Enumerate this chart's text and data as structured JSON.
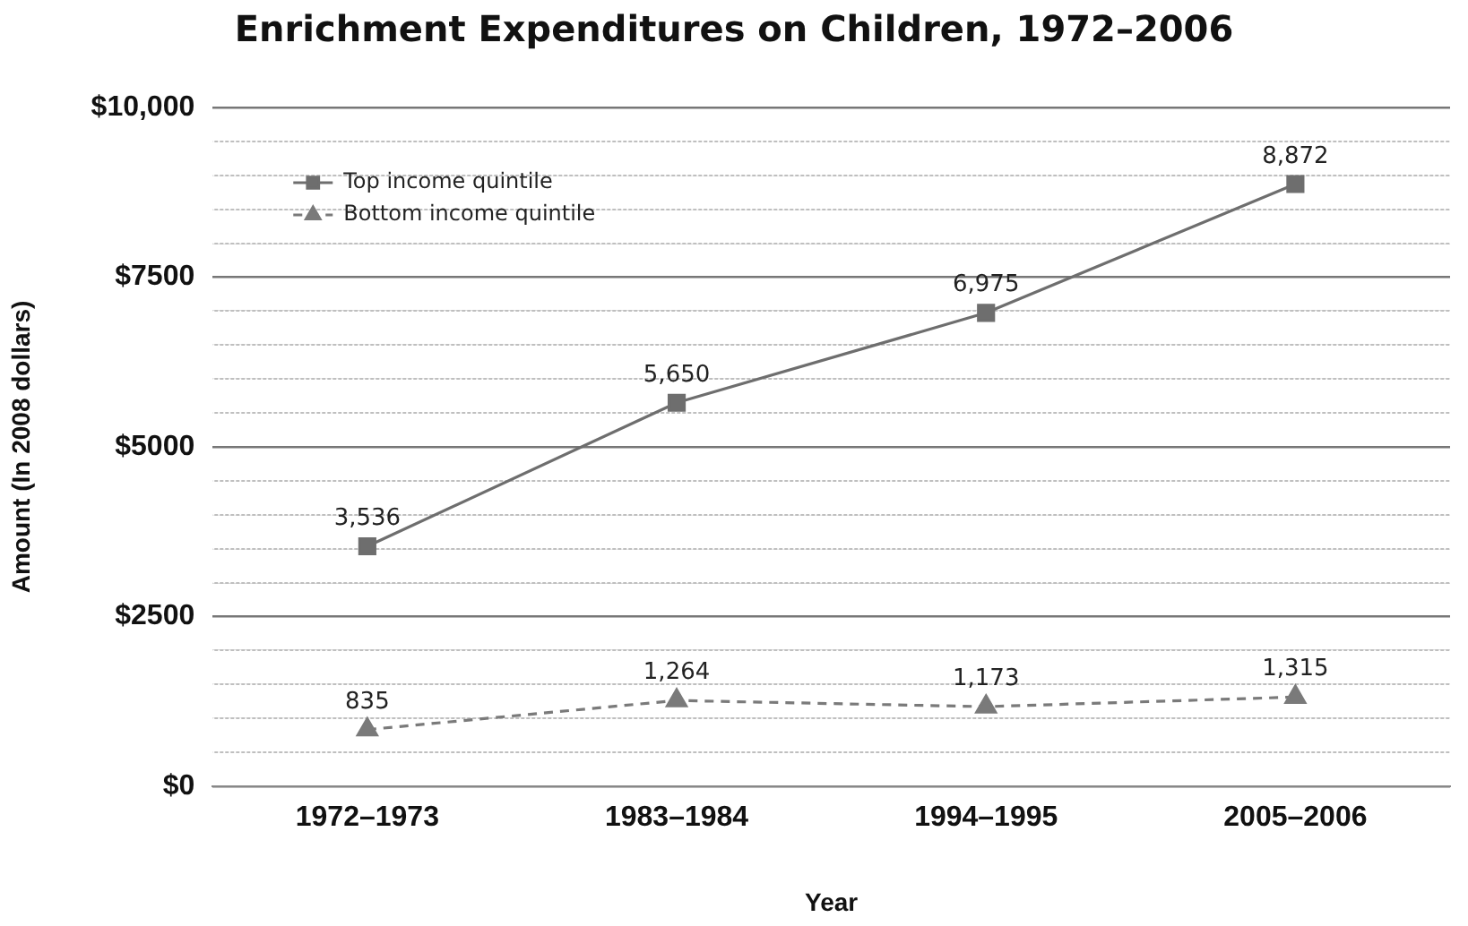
{
  "chart_data": {
    "type": "line",
    "title": "Enrichment Expenditures on Children, 1972–2006",
    "xlabel": "Year",
    "ylabel": "Amount (In 2008 dollars)",
    "categories": [
      "1972–1973",
      "1983–1984",
      "1994–1995",
      "2005–2006"
    ],
    "series": [
      {
        "name": "Top income quintile",
        "color": "#6e6e6e",
        "values": [
          3536,
          5650,
          6975,
          8872
        ],
        "value_labels": [
          "3,536",
          "5,650",
          "6,975",
          "8,872"
        ],
        "marker": "square",
        "line_style": "solid"
      },
      {
        "name": "Bottom income quintile",
        "color": "#7a7a7a",
        "values": [
          835,
          1264,
          1173,
          1315
        ],
        "value_labels": [
          "835",
          "1,264",
          "1,173",
          "1,315"
        ],
        "marker": "triangle",
        "line_style": "dashed"
      }
    ],
    "ylim": [
      0,
      10000
    ],
    "yticks": [
      {
        "value": 0,
        "label": "$0"
      },
      {
        "value": 500,
        "label": null
      },
      {
        "value": 1000,
        "label": null
      },
      {
        "value": 1500,
        "label": null
      },
      {
        "value": 2000,
        "label": null
      },
      {
        "value": 2500,
        "label": "$2500"
      },
      {
        "value": 3000,
        "label": null
      },
      {
        "value": 3500,
        "label": null
      },
      {
        "value": 4000,
        "label": null
      },
      {
        "value": 4500,
        "label": null
      },
      {
        "value": 5000,
        "label": "$5000"
      },
      {
        "value": 5500,
        "label": null
      },
      {
        "value": 6000,
        "label": null
      },
      {
        "value": 6500,
        "label": null
      },
      {
        "value": 7000,
        "label": null
      },
      {
        "value": 7500,
        "label": "$7500"
      },
      {
        "value": 8000,
        "label": null
      },
      {
        "value": 8500,
        "label": null
      },
      {
        "value": 9000,
        "label": null
      },
      {
        "value": 9500,
        "label": null
      },
      {
        "value": 10000,
        "label": "$10,000"
      }
    ],
    "grid": "y",
    "legend": "top left"
  }
}
